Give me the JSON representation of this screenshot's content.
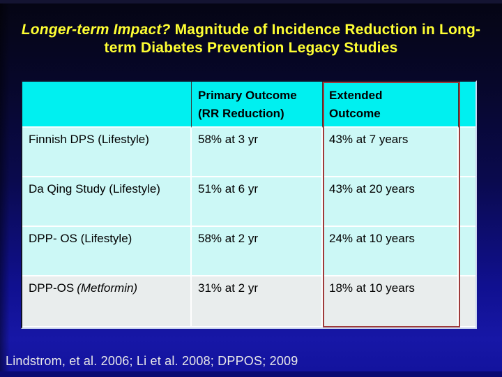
{
  "title": {
    "lead": "Longer-term Impact?",
    "rest": "Magnitude of Incidence Reduction in Long-term Diabetes Prevention Legacy Studies"
  },
  "table": {
    "header": {
      "study_col": "",
      "primary_line1": "Primary Outcome",
      "primary_line2": "(RR Reduction)",
      "extended_line1": "Extended",
      "extended_line2": "Outcome"
    },
    "rows": [
      {
        "study_prefix": "Finnish DPS (Lifestyle)",
        "study_italic": "",
        "primary": "58% at 3 yr",
        "extended": "43% at 7 years"
      },
      {
        "study_prefix": "Da Qing Study (Lifestyle)",
        "study_italic": "",
        "primary": "51% at 6 yr",
        "extended": "43% at 20 years"
      },
      {
        "study_prefix": "DPP- OS (Lifestyle)",
        "study_italic": "",
        "primary": "58% at 2 yr",
        "extended": "24% at 10 years"
      },
      {
        "study_prefix": "DPP-OS",
        "study_italic": "(Metformin)",
        "primary": "31% at 2 yr",
        "extended": "18% at 10 years"
      }
    ]
  },
  "footer": {
    "citation": "Lindstrom, et al. 2006; Li et al. 2008; DPPOS; 2009"
  },
  "colors": {
    "title_yellow": "#ffff33",
    "header_cyan": "#00f0f0",
    "row_pale_cyan": "#ccf8f6",
    "row_gray": "#e9eded",
    "highlight_red_border": "#9e3a3a",
    "background_blue_bottom": "#1717a6",
    "background_blue_top": "#050513"
  }
}
